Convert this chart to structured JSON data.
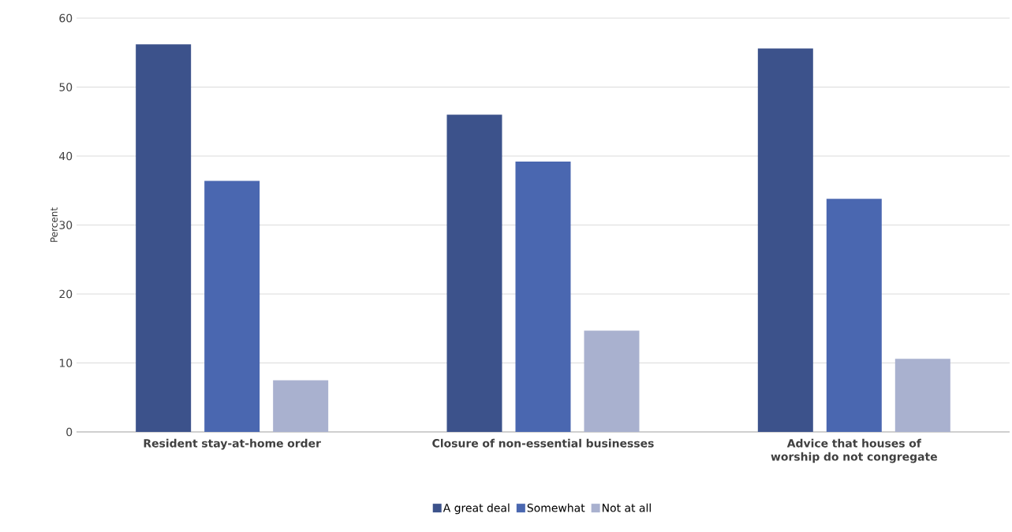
{
  "chart_data": {
    "type": "bar",
    "ylabel": "Percent",
    "categories": [
      "Resident stay-at-home order",
      "Closure of non-essential businesses",
      "Advice that houses of worship do not congregate"
    ],
    "series": [
      {
        "name": "A great deal",
        "color": "#3c528b",
        "values": [
          56.2,
          46.0,
          55.6
        ]
      },
      {
        "name": "Somewhat",
        "color": "#4a67b0",
        "values": [
          36.4,
          39.2,
          33.8
        ]
      },
      {
        "name": "Not at all",
        "color": "#a9b1cf",
        "values": [
          7.5,
          14.7,
          10.6
        ]
      }
    ],
    "ylim": [
      0,
      60
    ],
    "yticks": [
      0,
      10,
      20,
      30,
      40,
      50,
      60
    ],
    "grid": "y",
    "legend": "bottom"
  }
}
